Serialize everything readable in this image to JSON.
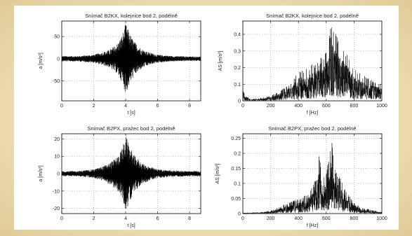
{
  "colors": {
    "background": "#e9dcb8",
    "panel": "#ffffff",
    "trace": "#000000",
    "grid": "#9a9a9a"
  },
  "chart_data": [
    {
      "type": "line",
      "title": "Snímač B2KX, kolejnice bod 2, podélně",
      "xlabel": "t [s]",
      "ylabel": "a [m/s²]",
      "xlim": [
        0,
        8.7
      ],
      "ylim": [
        -95,
        85
      ],
      "xticks": [
        "0",
        "2",
        "4",
        "6",
        "8"
      ],
      "xtick_values": [
        0,
        2,
        4,
        6,
        8
      ],
      "yticks": [
        "50",
        "0",
        "-50"
      ],
      "ytick_values": [
        50,
        0,
        -50
      ],
      "grid": true,
      "series": [
        {
          "signal": "time",
          "x": [
            0,
            1,
            2,
            2.5,
            3,
            3.5,
            3.8,
            4.0,
            4.2,
            4.5,
            5,
            5.5,
            6,
            7,
            8,
            8.7
          ],
          "envelope": [
            6,
            6,
            9,
            14,
            20,
            35,
            55,
            80,
            62,
            40,
            22,
            14,
            9,
            6,
            5,
            5
          ]
        }
      ]
    },
    {
      "type": "line",
      "title": "Snímač B2KX, kolejnice bod 2, podélně",
      "xlabel": "f [Hz]",
      "ylabel": "AS [m/s²]",
      "xlim": [
        0,
        1000
      ],
      "ylim": [
        0,
        0.48
      ],
      "xticks": [
        "0",
        "200",
        "400",
        "600",
        "800",
        "1000"
      ],
      "xtick_values": [
        0,
        200,
        400,
        600,
        800,
        1000
      ],
      "yticks": [
        "0.4",
        "0.3",
        "0.2",
        "0.1",
        "0"
      ],
      "ytick_values": [
        0.4,
        0.3,
        0.2,
        0.1,
        0
      ],
      "grid": true,
      "series": [
        {
          "signal": "spectrum",
          "x": [
            0,
            20,
            50,
            100,
            150,
            200,
            250,
            300,
            350,
            400,
            450,
            500,
            550,
            600,
            640,
            660,
            700,
            750,
            800,
            850,
            900,
            950,
            1000
          ],
          "peak": [
            0.08,
            0.04,
            0.01,
            0.015,
            0.02,
            0.03,
            0.05,
            0.08,
            0.12,
            0.18,
            0.2,
            0.22,
            0.25,
            0.3,
            0.47,
            0.42,
            0.35,
            0.28,
            0.2,
            0.16,
            0.14,
            0.12,
            0.1
          ]
        }
      ]
    },
    {
      "type": "line",
      "title": "Snímač B2PX, pražec bod 2, podélně",
      "xlabel": "t [s]",
      "ylabel": "a [m/s²]",
      "xlim": [
        0,
        8.7
      ],
      "ylim": [
        -23,
        23
      ],
      "xticks": [
        "0",
        "2",
        "4",
        "6",
        "8"
      ],
      "xtick_values": [
        0,
        2,
        4,
        6,
        8
      ],
      "yticks": [
        "20",
        "10",
        "0",
        "-10",
        "-20"
      ],
      "ytick_values": [
        20,
        10,
        0,
        -10,
        -20
      ],
      "grid": true,
      "series": [
        {
          "signal": "time",
          "x": [
            0,
            1,
            2,
            2.5,
            3,
            3.5,
            3.8,
            4.0,
            4.2,
            4.5,
            5,
            5.5,
            6,
            7,
            8,
            8.7
          ],
          "envelope": [
            1.5,
            1.5,
            2.5,
            4,
            6,
            10,
            15,
            22,
            17,
            11,
            6,
            4,
            2.5,
            1.8,
            1.5,
            1.5
          ]
        }
      ]
    },
    {
      "type": "line",
      "title": "Snímač B2PX, pražec bod 2, podélně",
      "xlabel": "f [Hz]",
      "ylabel": "AS [m/s²]",
      "xlim": [
        0,
        1000
      ],
      "ylim": [
        0,
        0.265
      ],
      "xticks": [
        "0",
        "200",
        "400",
        "600",
        "800",
        "1000"
      ],
      "xtick_values": [
        0,
        200,
        400,
        600,
        800,
        1000
      ],
      "yticks": [
        "0.25",
        "0.2",
        "0.15",
        "0.1",
        "0.05",
        "0"
      ],
      "ytick_values": [
        0.25,
        0.2,
        0.15,
        0.1,
        0.05,
        0
      ],
      "grid": true,
      "series": [
        {
          "signal": "spectrum",
          "x": [
            0,
            50,
            100,
            150,
            200,
            250,
            300,
            350,
            400,
            450,
            500,
            530,
            550,
            570,
            600,
            620,
            640,
            660,
            700,
            750,
            800,
            850,
            900,
            950,
            1000
          ],
          "peak": [
            0.003,
            0.003,
            0.004,
            0.006,
            0.01,
            0.02,
            0.03,
            0.04,
            0.05,
            0.06,
            0.09,
            0.12,
            0.22,
            0.12,
            0.14,
            0.18,
            0.26,
            0.15,
            0.12,
            0.07,
            0.04,
            0.02,
            0.015,
            0.01,
            0.005
          ]
        }
      ]
    }
  ]
}
